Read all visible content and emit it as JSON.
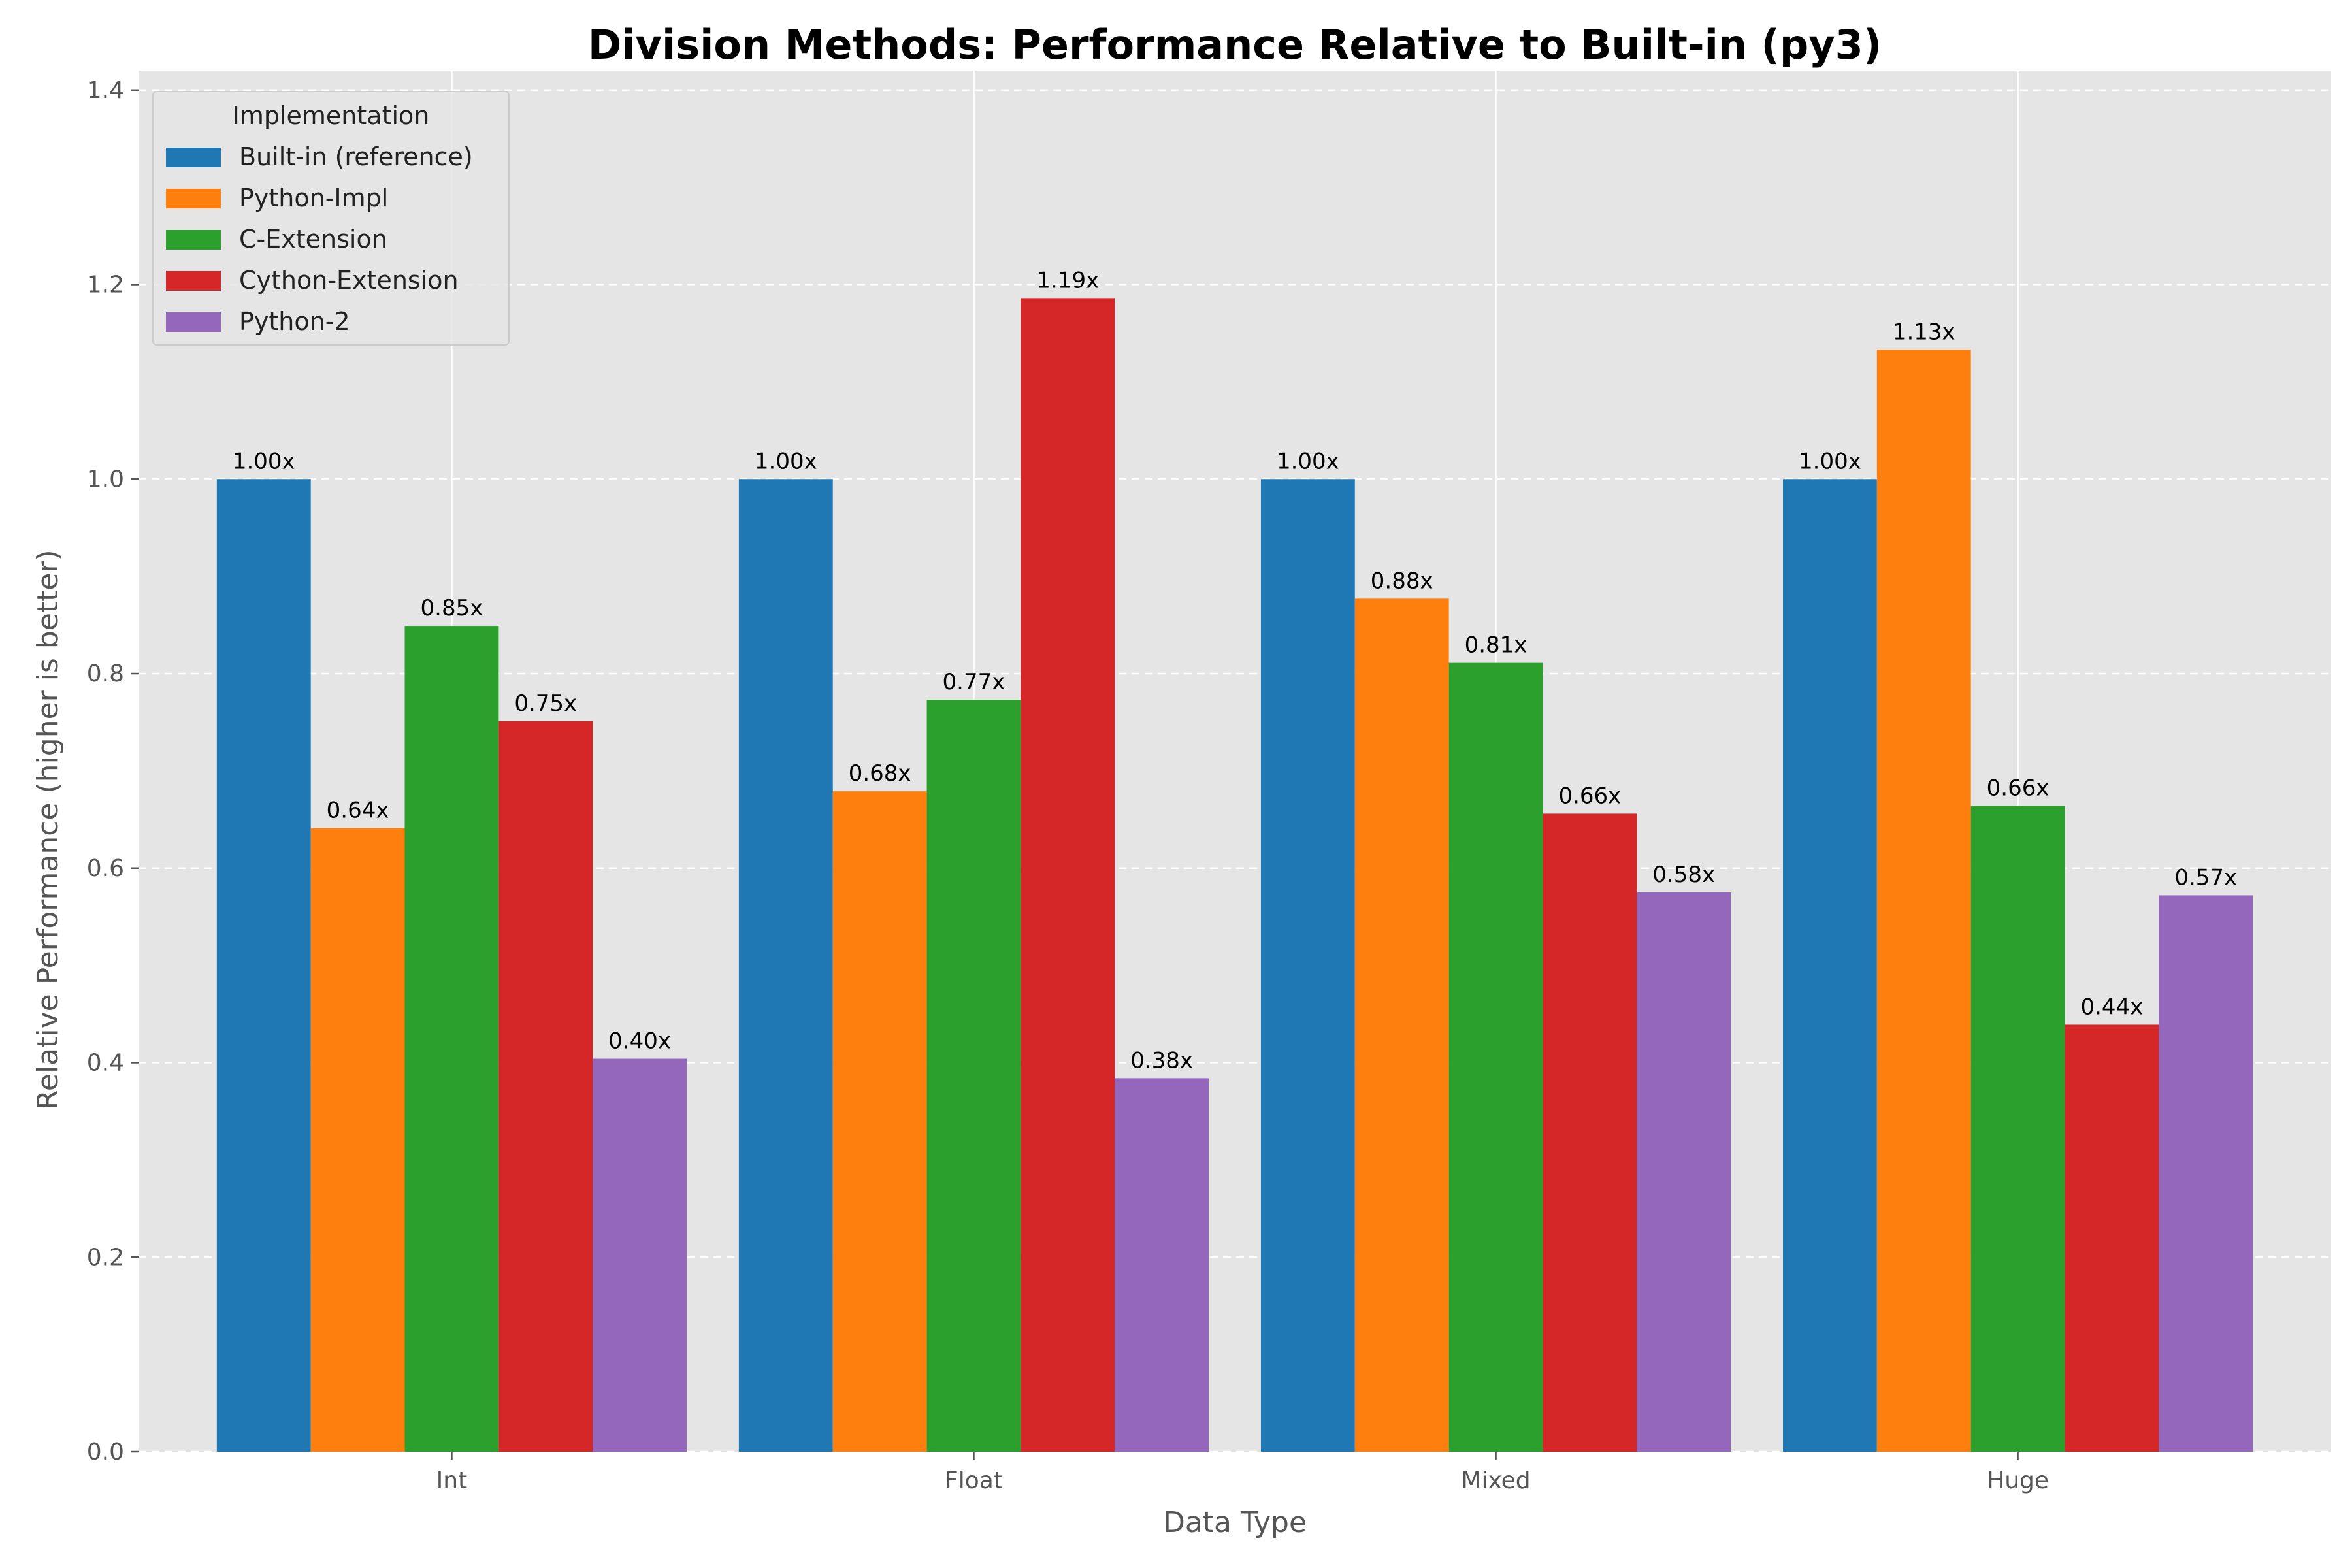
{
  "chart_data": {
    "type": "bar",
    "title": "Division Methods: Performance Relative to Built-in (py3)",
    "xlabel": "Data Type",
    "ylabel": "Relative Performance (higher is better)",
    "categories": [
      "Int",
      "Float",
      "Mixed",
      "Huge"
    ],
    "ylim": [
      0,
      1.42
    ],
    "yticks": [
      "0.0",
      "0.2",
      "0.4",
      "0.6",
      "0.8",
      "1.0",
      "1.2",
      "1.4"
    ],
    "grid": true,
    "legend": {
      "title": "Implementation",
      "position": "top-left"
    },
    "series": [
      {
        "name": "Built-in (reference)",
        "color": "#1f77b4",
        "values": [
          1.0,
          1.0,
          1.0,
          1.0
        ],
        "labels": [
          "1.00x",
          "1.00x",
          "1.00x",
          "1.00x"
        ]
      },
      {
        "name": "Python-Impl",
        "color": "#ff7f0e",
        "values": [
          0.641,
          0.679,
          0.877,
          1.133
        ],
        "labels": [
          "0.64x",
          "0.68x",
          "0.88x",
          "1.13x"
        ]
      },
      {
        "name": "C-Extension",
        "color": "#2ca02c",
        "values": [
          0.849,
          0.773,
          0.811,
          0.664
        ],
        "labels": [
          "0.85x",
          "0.77x",
          "0.81x",
          "0.66x"
        ]
      },
      {
        "name": "Cython-Extension",
        "color": "#d62728",
        "values": [
          0.751,
          1.186,
          0.656,
          0.439
        ],
        "labels": [
          "0.75x",
          "1.19x",
          "0.66x",
          "0.44x"
        ]
      },
      {
        "name": "Python-2",
        "color": "#9467bd",
        "values": [
          0.404,
          0.384,
          0.575,
          0.572
        ],
        "labels": [
          "0.40x",
          "0.38x",
          "0.58x",
          "0.57x"
        ]
      }
    ]
  }
}
